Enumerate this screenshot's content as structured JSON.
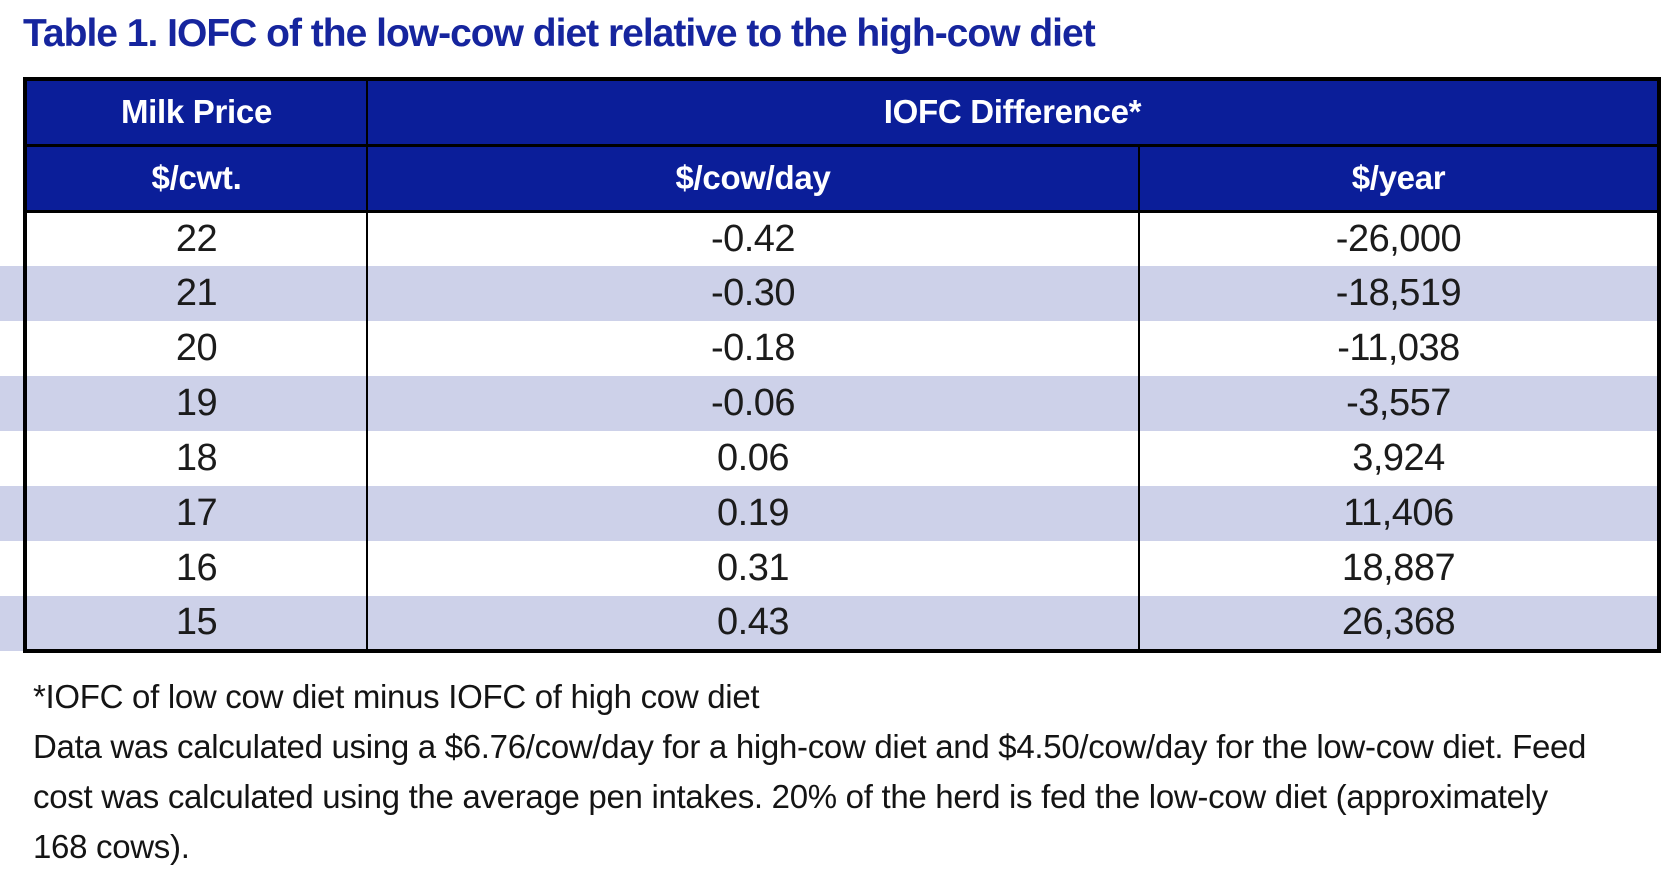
{
  "title": "Table 1. IOFC of the low-cow diet relative to the high-cow diet",
  "colors": {
    "title": "#16259e",
    "header_bg": "#0b1e99",
    "header_text": "#ffffff",
    "stripe": "#cdd1e9",
    "row_white": "#ffffff",
    "border": "#000000",
    "cell_text": "#1b1b1b",
    "footnote_text": "#141414",
    "page_bg": "#ffffff"
  },
  "table": {
    "header_row1": {
      "milk_price": "Milk Price",
      "iofc_difference": "IOFC Difference*"
    },
    "header_row2": {
      "per_cwt": "$/cwt.",
      "per_cow_day": "$/cow/day",
      "per_year": "$/year"
    },
    "rows": [
      {
        "milk_price": "22",
        "per_cow_day": "-0.42",
        "per_year": "-26,000"
      },
      {
        "milk_price": "21",
        "per_cow_day": "-0.30",
        "per_year": "-18,519"
      },
      {
        "milk_price": "20",
        "per_cow_day": "-0.18",
        "per_year": "-11,038"
      },
      {
        "milk_price": "19",
        "per_cow_day": "-0.06",
        "per_year": "-3,557"
      },
      {
        "milk_price": "18",
        "per_cow_day": "0.06",
        "per_year": "3,924"
      },
      {
        "milk_price": "17",
        "per_cow_day": "0.19",
        "per_year": "11,406"
      },
      {
        "milk_price": "16",
        "per_cow_day": "0.31",
        "per_year": "18,887"
      },
      {
        "milk_price": "15",
        "per_cow_day": "0.43",
        "per_year": "26,368"
      }
    ]
  },
  "footnotes": {
    "definition": "*IOFC of low cow diet minus IOFC of high cow diet",
    "details": "Data was calculated using a $6.76/cow/day for a high-cow diet and $4.50/cow/day for the low-cow diet. Feed cost was calculated using the average pen intakes. 20% of the herd is fed the low-cow diet (approximately 168 cows)."
  }
}
